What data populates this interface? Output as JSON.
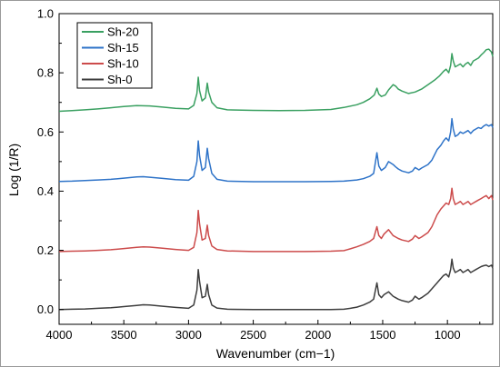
{
  "chart_data": {
    "type": "line",
    "title": "",
    "xlabel": "Wavenumber (cm−1)",
    "ylabel": "Log (1/R)",
    "xlim": [
      4000,
      650
    ],
    "ylim": [
      -0.05,
      1.0
    ],
    "x_reversed": true,
    "x_ticks": [
      4000,
      3500,
      3000,
      2500,
      2000,
      1500,
      1000
    ],
    "x_tick_labels": [
      "4000",
      "3500",
      "3000",
      "2500",
      "2000",
      "1500",
      "1000"
    ],
    "y_ticks": [
      0.0,
      0.2,
      0.4,
      0.6,
      0.8,
      1.0
    ],
    "y_tick_labels": [
      "0.0",
      "0.2",
      "0.4",
      "0.6",
      "0.8",
      "1.0"
    ],
    "grid": false,
    "legend_position": "top-left",
    "series": [
      {
        "name": "Sh-20",
        "color": "#3aa061",
        "points": [
          [
            4000,
            0.67
          ],
          [
            3900,
            0.672
          ],
          [
            3800,
            0.675
          ],
          [
            3700,
            0.678
          ],
          [
            3600,
            0.682
          ],
          [
            3500,
            0.686
          ],
          [
            3400,
            0.689
          ],
          [
            3300,
            0.688
          ],
          [
            3200,
            0.684
          ],
          [
            3100,
            0.68
          ],
          [
            3000,
            0.678
          ],
          [
            2960,
            0.69
          ],
          [
            2935,
            0.73
          ],
          [
            2925,
            0.785
          ],
          [
            2915,
            0.74
          ],
          [
            2895,
            0.705
          ],
          [
            2870,
            0.715
          ],
          [
            2855,
            0.765
          ],
          [
            2845,
            0.735
          ],
          [
            2820,
            0.7
          ],
          [
            2780,
            0.682
          ],
          [
            2700,
            0.675
          ],
          [
            2500,
            0.673
          ],
          [
            2300,
            0.672
          ],
          [
            2100,
            0.673
          ],
          [
            1900,
            0.676
          ],
          [
            1800,
            0.683
          ],
          [
            1700,
            0.692
          ],
          [
            1650,
            0.7
          ],
          [
            1600,
            0.712
          ],
          [
            1565,
            0.725
          ],
          [
            1545,
            0.748
          ],
          [
            1530,
            0.728
          ],
          [
            1510,
            0.72
          ],
          [
            1480,
            0.725
          ],
          [
            1455,
            0.742
          ],
          [
            1420,
            0.76
          ],
          [
            1400,
            0.755
          ],
          [
            1380,
            0.745
          ],
          [
            1350,
            0.738
          ],
          [
            1300,
            0.73
          ],
          [
            1250,
            0.735
          ],
          [
            1200,
            0.745
          ],
          [
            1150,
            0.76
          ],
          [
            1100,
            0.775
          ],
          [
            1060,
            0.79
          ],
          [
            1030,
            0.805
          ],
          [
            1010,
            0.812
          ],
          [
            990,
            0.8
          ],
          [
            975,
            0.825
          ],
          [
            965,
            0.865
          ],
          [
            955,
            0.84
          ],
          [
            940,
            0.82
          ],
          [
            920,
            0.825
          ],
          [
            900,
            0.83
          ],
          [
            880,
            0.82
          ],
          [
            860,
            0.83
          ],
          [
            840,
            0.835
          ],
          [
            820,
            0.825
          ],
          [
            800,
            0.84
          ],
          [
            780,
            0.845
          ],
          [
            760,
            0.85
          ],
          [
            740,
            0.86
          ],
          [
            720,
            0.868
          ],
          [
            700,
            0.878
          ],
          [
            680,
            0.88
          ],
          [
            660,
            0.87
          ],
          [
            650,
            0.855
          ]
        ]
      },
      {
        "name": "Sh-15",
        "color": "#2e73c8",
        "points": [
          [
            4000,
            0.433
          ],
          [
            3900,
            0.434
          ],
          [
            3800,
            0.436
          ],
          [
            3700,
            0.438
          ],
          [
            3600,
            0.44
          ],
          [
            3500,
            0.444
          ],
          [
            3400,
            0.448
          ],
          [
            3350,
            0.449
          ],
          [
            3300,
            0.447
          ],
          [
            3200,
            0.443
          ],
          [
            3100,
            0.439
          ],
          [
            3000,
            0.437
          ],
          [
            2960,
            0.45
          ],
          [
            2935,
            0.5
          ],
          [
            2925,
            0.57
          ],
          [
            2915,
            0.52
          ],
          [
            2895,
            0.47
          ],
          [
            2870,
            0.48
          ],
          [
            2855,
            0.545
          ],
          [
            2845,
            0.51
          ],
          [
            2820,
            0.46
          ],
          [
            2780,
            0.44
          ],
          [
            2700,
            0.434
          ],
          [
            2500,
            0.432
          ],
          [
            2300,
            0.432
          ],
          [
            2100,
            0.432
          ],
          [
            1900,
            0.433
          ],
          [
            1800,
            0.434
          ],
          [
            1700,
            0.438
          ],
          [
            1650,
            0.442
          ],
          [
            1600,
            0.45
          ],
          [
            1570,
            0.46
          ],
          [
            1545,
            0.53
          ],
          [
            1530,
            0.485
          ],
          [
            1510,
            0.47
          ],
          [
            1480,
            0.48
          ],
          [
            1455,
            0.5
          ],
          [
            1420,
            0.49
          ],
          [
            1400,
            0.482
          ],
          [
            1380,
            0.475
          ],
          [
            1350,
            0.468
          ],
          [
            1300,
            0.462
          ],
          [
            1270,
            0.468
          ],
          [
            1250,
            0.48
          ],
          [
            1220,
            0.472
          ],
          [
            1200,
            0.478
          ],
          [
            1150,
            0.49
          ],
          [
            1120,
            0.505
          ],
          [
            1080,
            0.54
          ],
          [
            1050,
            0.555
          ],
          [
            1030,
            0.57
          ],
          [
            1010,
            0.58
          ],
          [
            990,
            0.57
          ],
          [
            975,
            0.6
          ],
          [
            965,
            0.645
          ],
          [
            955,
            0.61
          ],
          [
            940,
            0.585
          ],
          [
            920,
            0.59
          ],
          [
            900,
            0.6
          ],
          [
            880,
            0.595
          ],
          [
            860,
            0.6
          ],
          [
            840,
            0.605
          ],
          [
            820,
            0.595
          ],
          [
            800,
            0.605
          ],
          [
            780,
            0.61
          ],
          [
            760,
            0.615
          ],
          [
            740,
            0.612
          ],
          [
            720,
            0.62
          ],
          [
            700,
            0.625
          ],
          [
            680,
            0.62
          ],
          [
            660,
            0.625
          ],
          [
            650,
            0.615
          ]
        ]
      },
      {
        "name": "Sh-10",
        "color": "#cc4b4b",
        "points": [
          [
            4000,
            0.196
          ],
          [
            3900,
            0.197
          ],
          [
            3800,
            0.198
          ],
          [
            3700,
            0.2
          ],
          [
            3600,
            0.202
          ],
          [
            3500,
            0.206
          ],
          [
            3400,
            0.21
          ],
          [
            3350,
            0.212
          ],
          [
            3300,
            0.211
          ],
          [
            3200,
            0.207
          ],
          [
            3100,
            0.203
          ],
          [
            3000,
            0.2
          ],
          [
            2960,
            0.21
          ],
          [
            2935,
            0.26
          ],
          [
            2925,
            0.335
          ],
          [
            2915,
            0.29
          ],
          [
            2895,
            0.235
          ],
          [
            2870,
            0.24
          ],
          [
            2855,
            0.285
          ],
          [
            2845,
            0.25
          ],
          [
            2820,
            0.215
          ],
          [
            2780,
            0.203
          ],
          [
            2700,
            0.198
          ],
          [
            2500,
            0.196
          ],
          [
            2300,
            0.196
          ],
          [
            2100,
            0.196
          ],
          [
            1900,
            0.197
          ],
          [
            1800,
            0.199
          ],
          [
            1750,
            0.205
          ],
          [
            1700,
            0.212
          ],
          [
            1650,
            0.22
          ],
          [
            1600,
            0.23
          ],
          [
            1570,
            0.24
          ],
          [
            1545,
            0.28
          ],
          [
            1530,
            0.25
          ],
          [
            1510,
            0.24
          ],
          [
            1490,
            0.255
          ],
          [
            1455,
            0.27
          ],
          [
            1420,
            0.25
          ],
          [
            1400,
            0.245
          ],
          [
            1380,
            0.24
          ],
          [
            1350,
            0.235
          ],
          [
            1300,
            0.23
          ],
          [
            1270,
            0.238
          ],
          [
            1250,
            0.25
          ],
          [
            1220,
            0.24
          ],
          [
            1200,
            0.245
          ],
          [
            1150,
            0.26
          ],
          [
            1120,
            0.28
          ],
          [
            1080,
            0.32
          ],
          [
            1050,
            0.34
          ],
          [
            1030,
            0.35
          ],
          [
            1010,
            0.36
          ],
          [
            990,
            0.355
          ],
          [
            975,
            0.375
          ],
          [
            965,
            0.41
          ],
          [
            955,
            0.375
          ],
          [
            940,
            0.355
          ],
          [
            920,
            0.36
          ],
          [
            900,
            0.365
          ],
          [
            880,
            0.355
          ],
          [
            860,
            0.36
          ],
          [
            840,
            0.365
          ],
          [
            820,
            0.355
          ],
          [
            800,
            0.36
          ],
          [
            780,
            0.365
          ],
          [
            760,
            0.37
          ],
          [
            740,
            0.375
          ],
          [
            720,
            0.38
          ],
          [
            700,
            0.385
          ],
          [
            680,
            0.375
          ],
          [
            660,
            0.385
          ],
          [
            650,
            0.37
          ]
        ]
      },
      {
        "name": "Sh-0",
        "color": "#3d3d3d",
        "points": [
          [
            4000,
            0.0
          ],
          [
            3900,
            0.001
          ],
          [
            3800,
            0.002
          ],
          [
            3700,
            0.004
          ],
          [
            3600,
            0.006
          ],
          [
            3500,
            0.01
          ],
          [
            3400,
            0.014
          ],
          [
            3350,
            0.016
          ],
          [
            3300,
            0.015
          ],
          [
            3200,
            0.011
          ],
          [
            3100,
            0.007
          ],
          [
            3000,
            0.004
          ],
          [
            2960,
            0.015
          ],
          [
            2935,
            0.065
          ],
          [
            2925,
            0.135
          ],
          [
            2915,
            0.095
          ],
          [
            2895,
            0.04
          ],
          [
            2870,
            0.045
          ],
          [
            2855,
            0.085
          ],
          [
            2845,
            0.05
          ],
          [
            2820,
            0.015
          ],
          [
            2780,
            0.005
          ],
          [
            2700,
            0.001
          ],
          [
            2500,
            0.0
          ],
          [
            2300,
            0.0
          ],
          [
            2100,
            0.0
          ],
          [
            1900,
            0.0
          ],
          [
            1800,
            0.001
          ],
          [
            1750,
            0.004
          ],
          [
            1700,
            0.008
          ],
          [
            1650,
            0.015
          ],
          [
            1600,
            0.025
          ],
          [
            1570,
            0.035
          ],
          [
            1545,
            0.09
          ],
          [
            1530,
            0.05
          ],
          [
            1510,
            0.04
          ],
          [
            1490,
            0.05
          ],
          [
            1455,
            0.06
          ],
          [
            1420,
            0.045
          ],
          [
            1400,
            0.04
          ],
          [
            1380,
            0.035
          ],
          [
            1350,
            0.03
          ],
          [
            1300,
            0.025
          ],
          [
            1270,
            0.032
          ],
          [
            1250,
            0.045
          ],
          [
            1220,
            0.035
          ],
          [
            1200,
            0.04
          ],
          [
            1150,
            0.055
          ],
          [
            1120,
            0.07
          ],
          [
            1080,
            0.09
          ],
          [
            1050,
            0.105
          ],
          [
            1030,
            0.115
          ],
          [
            1010,
            0.12
          ],
          [
            990,
            0.11
          ],
          [
            975,
            0.135
          ],
          [
            965,
            0.17
          ],
          [
            955,
            0.14
          ],
          [
            940,
            0.125
          ],
          [
            920,
            0.13
          ],
          [
            900,
            0.135
          ],
          [
            880,
            0.125
          ],
          [
            860,
            0.13
          ],
          [
            840,
            0.135
          ],
          [
            820,
            0.125
          ],
          [
            800,
            0.13
          ],
          [
            780,
            0.135
          ],
          [
            760,
            0.14
          ],
          [
            740,
            0.145
          ],
          [
            720,
            0.148
          ],
          [
            700,
            0.15
          ],
          [
            680,
            0.145
          ],
          [
            660,
            0.15
          ],
          [
            650,
            0.14
          ]
        ]
      }
    ]
  }
}
